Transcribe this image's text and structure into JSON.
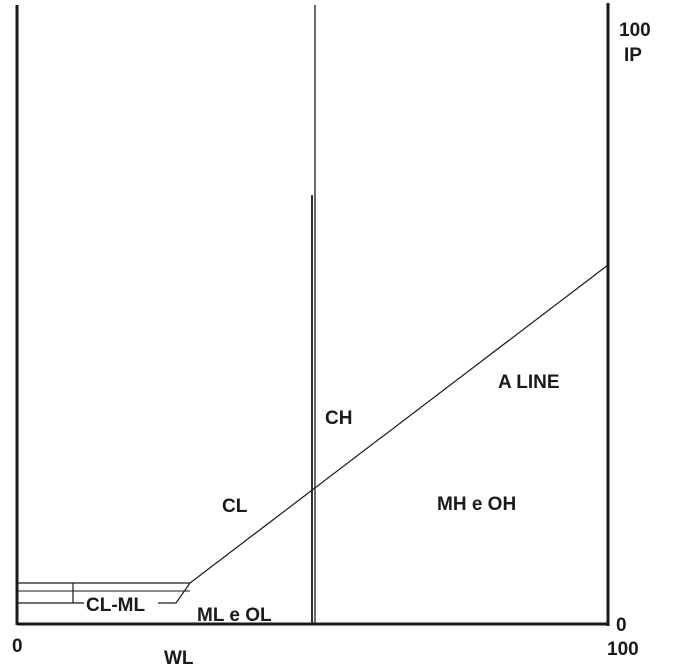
{
  "chart_data": {
    "type": "diagram",
    "axes": {
      "x": {
        "label": "WL",
        "min_label": "0",
        "max_label": "100"
      },
      "y": {
        "label": "IP",
        "min_label": "0",
        "max_label": "100"
      }
    },
    "zones": {
      "cl": "CL",
      "ch": "CH",
      "mh_oh": "MH e OH",
      "cl_ml": "CL-ML",
      "ml_ol": "ML e OL"
    },
    "lines": {
      "a_line": "A LINE"
    }
  }
}
